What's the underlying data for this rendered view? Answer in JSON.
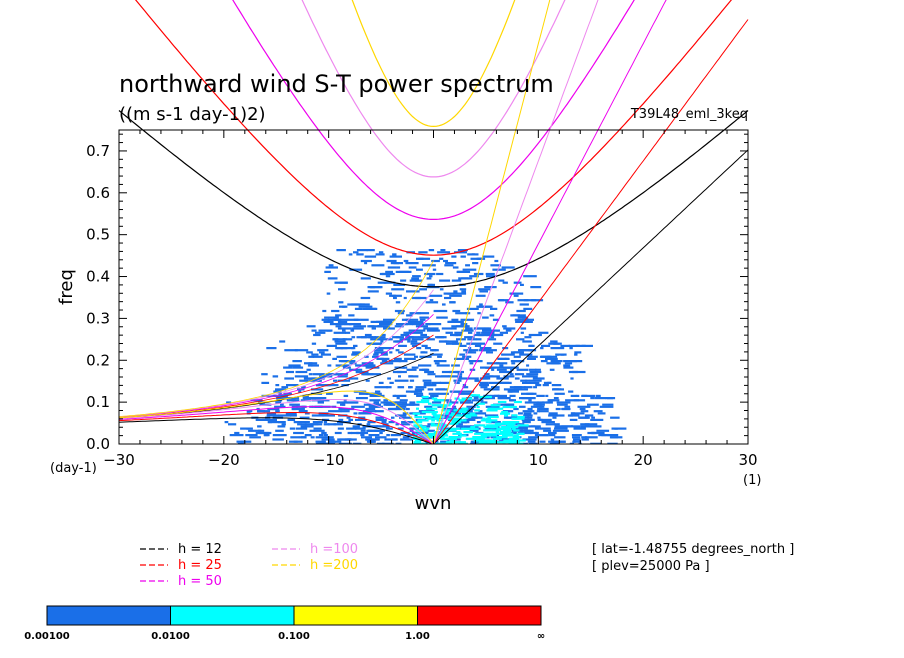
{
  "chart_data": {
    "type": "heatmap",
    "title": "northward wind S-T power spectrum",
    "subtitle": "((m s-1 day-1)2)",
    "experiment": "T39L48_eml_3keq",
    "xlabel": "wvn",
    "ylabel": "freq",
    "x_unit": "(1)",
    "y_unit": "(day-1)",
    "xlim": [
      -30,
      30
    ],
    "ylim": [
      0.0,
      0.75
    ],
    "x_ticks": [
      -30,
      -20,
      -10,
      0,
      10,
      20,
      30
    ],
    "y_ticks": [
      0.0,
      0.1,
      0.2,
      0.3,
      0.4,
      0.5,
      0.6,
      0.7
    ],
    "x_tick_labels": [
      "−30",
      "−20",
      "−10",
      "0",
      "10",
      "20",
      "30"
    ],
    "y_tick_labels": [
      "0.0",
      "0.1",
      "0.2",
      "0.3",
      "0.4",
      "0.5",
      "0.6",
      "0.7"
    ],
    "colorbar": {
      "levels": [
        "0.00100",
        "0.0100",
        "0.100",
        "1.00",
        "∞"
      ],
      "colors": [
        "#1a6fe8",
        "#00ffff",
        "#ffff00",
        "#ff0000"
      ]
    },
    "spectrum_extent": {
      "wvn_range": [
        -23,
        20
      ],
      "freq_max": 0.47,
      "dense_freq_max": 0.12,
      "note_levels": "mostly 0.001-0.01 (blue), 0.01-0.1 (cyan) near wvn 0-8, freq < 0.1"
    },
    "dispersion_curves": [
      {
        "name": "h = 12",
        "equivalent_depth": 12,
        "color": "#000000"
      },
      {
        "name": "h = 25",
        "equivalent_depth": 25,
        "color": "#ff0000"
      },
      {
        "name": "h = 50",
        "equivalent_depth": 50,
        "color": "#ee00ee"
      },
      {
        "name": "h =100",
        "equivalent_depth": 100,
        "color": "#ee88ee"
      },
      {
        "name": "h =200",
        "equivalent_depth": 200,
        "color": "#ffd700"
      }
    ],
    "info_lines": [
      "[ lat=-1.48755 degrees_north ]",
      "[ plev=25000 Pa ]"
    ]
  }
}
